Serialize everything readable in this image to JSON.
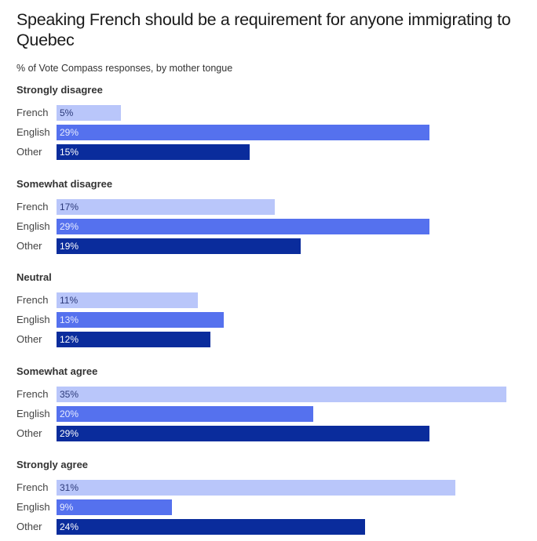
{
  "chart_data": {
    "type": "bar",
    "orientation": "horizontal",
    "title": "Speaking French should be a requirement for anyone immigrating to Quebec",
    "subtitle": "% of Vote Compass responses, by mother tongue",
    "xlim": [
      0,
      35
    ],
    "series_names": [
      "French",
      "English",
      "Other"
    ],
    "colors": {
      "French": "#b9c6fa",
      "English": "#5571ee",
      "Other": "#0a2c9c"
    },
    "label_colors": {
      "French": "#2c3a7a",
      "English": "#e8ecff",
      "Other": "#ffffff"
    },
    "groups": [
      {
        "name": "Strongly disagree",
        "values": [
          5,
          29,
          15
        ]
      },
      {
        "name": "Somewhat disagree",
        "values": [
          17,
          29,
          19
        ]
      },
      {
        "name": "Neutral",
        "values": [
          11,
          13,
          12
        ]
      },
      {
        "name": "Somewhat agree",
        "values": [
          35,
          20,
          29
        ]
      },
      {
        "name": "Strongly agree",
        "values": [
          31,
          9,
          24
        ]
      }
    ]
  }
}
